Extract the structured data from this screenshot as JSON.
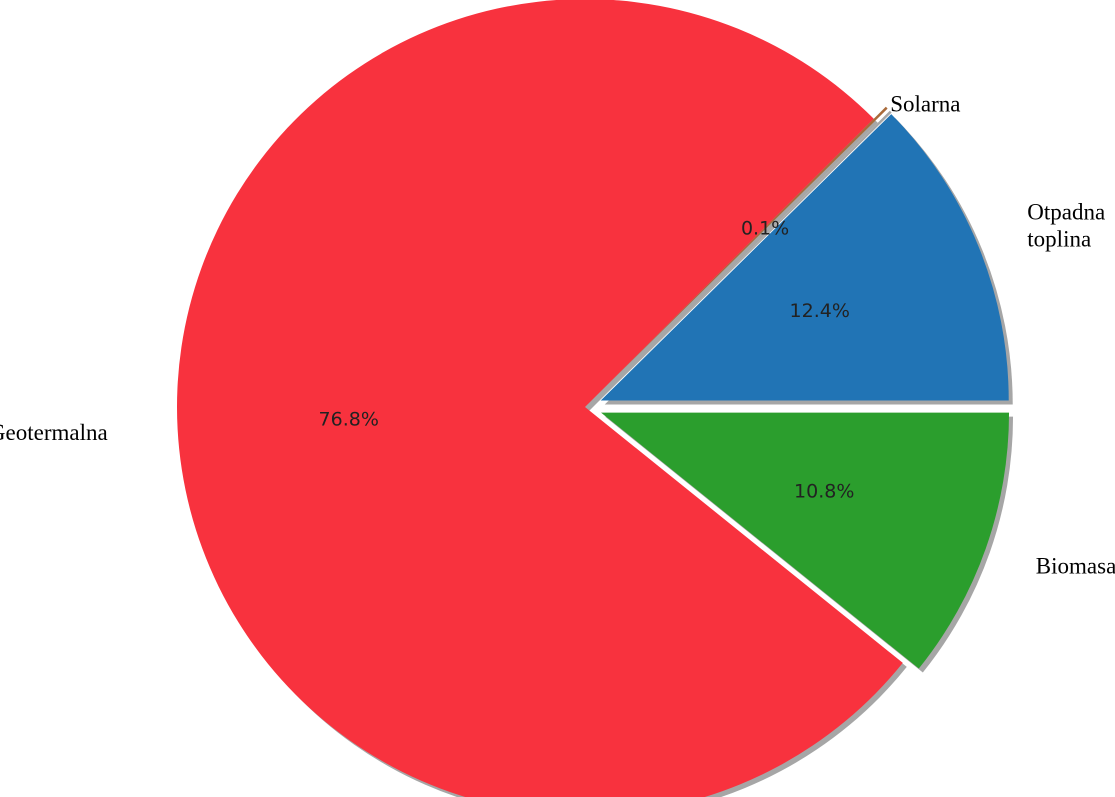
{
  "chart_data": {
    "type": "pie",
    "categories": [
      "Otpadna toplina",
      "Solarna",
      "Geotermalna",
      "Biomasa"
    ],
    "values": [
      12.4,
      0.1,
      76.8,
      10.8
    ],
    "percent_labels": [
      "12.4%",
      "0.1%",
      "76.8%",
      "10.8%"
    ],
    "label_lines": [
      [
        "Otpadna",
        "toplina"
      ],
      [
        "Solarna"
      ],
      [
        "Geotermalna"
      ],
      [
        "Biomasa"
      ]
    ],
    "colors": [
      "#2174b5",
      "#a96a3a",
      "#f8323e",
      "#2b9e2d"
    ],
    "exploded": true,
    "shadow": true,
    "start_angle_deg": 0,
    "direction": "counterclockwise"
  }
}
